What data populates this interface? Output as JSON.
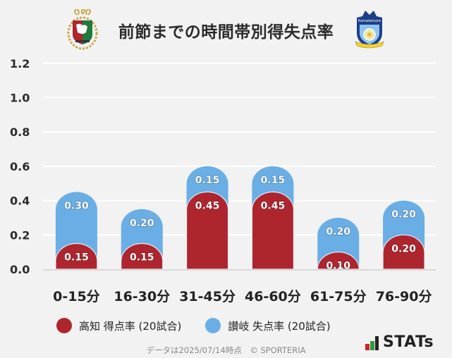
{
  "header": {
    "title": "前節までの時間帯別得失点率",
    "home_logo": "kochi-united-crest",
    "away_logo": "kamatamare-sanuki-crest"
  },
  "colors": {
    "home": "#ae252e",
    "away": "#6aaee6",
    "grid": "#ffffff",
    "baseline": "#d9d9d9",
    "background": "#f2f2f2"
  },
  "chart_data": {
    "type": "bar",
    "stacked": true,
    "title": "前節までの時間帯別得失点率",
    "xlabel": "",
    "ylabel": "",
    "ylim": [
      0,
      1.2
    ],
    "yticks": [
      "0.0",
      "0.2",
      "0.4",
      "0.6",
      "0.8",
      "1.0",
      "1.2"
    ],
    "grid": true,
    "legend_position": "bottom",
    "categories": [
      "0-15分",
      "16-30分",
      "31-45分",
      "46-60分",
      "61-75分",
      "76-90分"
    ],
    "series": [
      {
        "name": "高知 得点率 (20試合)",
        "color": "#ae252e",
        "values": [
          0.15,
          0.15,
          0.45,
          0.45,
          0.1,
          0.2
        ],
        "labels": [
          "0.15",
          "0.15",
          "0.45",
          "0.45",
          "0.10",
          "0.20"
        ]
      },
      {
        "name": "讃岐 失点率 (20試合)",
        "color": "#6aaee6",
        "values": [
          0.3,
          0.2,
          0.15,
          0.15,
          0.2,
          0.2
        ],
        "labels": [
          "0.30",
          "0.20",
          "0.15",
          "0.15",
          "0.20",
          "0.20"
        ]
      }
    ]
  },
  "legend": {
    "items": [
      {
        "label": "高知 得点率 (20試合)",
        "color": "#ae252e"
      },
      {
        "label": "讃岐 失点率 (20試合)",
        "color": "#6aaee6"
      }
    ]
  },
  "footer": {
    "note": "データは2025/07/14時点　© SPORTERIA",
    "brand": "STATs"
  }
}
